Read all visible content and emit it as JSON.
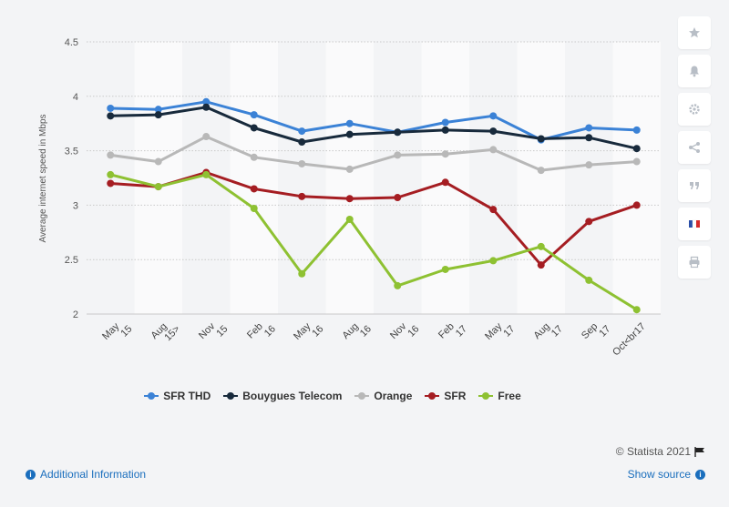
{
  "toolbar": {
    "items": [
      {
        "name": "star-icon"
      },
      {
        "name": "bell-icon"
      },
      {
        "name": "gear-icon"
      },
      {
        "name": "share-icon"
      },
      {
        "name": "quote-icon"
      },
      {
        "name": "flag-icon"
      },
      {
        "name": "print-icon"
      }
    ]
  },
  "footer": {
    "credit": "© Statista 2021",
    "additional_info": "Additional Information",
    "show_source": "Show source"
  },
  "chart_data": {
    "type": "line",
    "title": "",
    "xlabel": "",
    "ylabel": "Average internet speed in Mbps",
    "ylim": [
      2,
      4.5
    ],
    "yticks": [
      "2",
      "2.5",
      "3",
      "3.5",
      "4",
      "4.5"
    ],
    "grid": true,
    "legend_position": "bottom",
    "categories": [
      {
        "line1": "May",
        "line2": "15"
      },
      {
        "line1": "Aug",
        "line2": "15>"
      },
      {
        "line1": "Nov",
        "line2": "15"
      },
      {
        "line1": "Feb",
        "line2": "16"
      },
      {
        "line1": "May",
        "line2": "16"
      },
      {
        "line1": "Aug",
        "line2": "16"
      },
      {
        "line1": "Nov",
        "line2": "16"
      },
      {
        "line1": "Feb",
        "line2": "17"
      },
      {
        "line1": "May",
        "line2": "17"
      },
      {
        "line1": "Aug",
        "line2": "17"
      },
      {
        "line1": "Sep",
        "line2": "17"
      },
      {
        "line1": "Oct<br17",
        "line2": ""
      }
    ],
    "series": [
      {
        "name": "SFR THD",
        "color": "#3b82d6",
        "values": [
          3.89,
          3.88,
          3.95,
          3.83,
          3.68,
          3.75,
          3.67,
          3.76,
          3.82,
          3.6,
          3.71,
          3.69
        ]
      },
      {
        "name": "Bouygues Telecom",
        "color": "#182a3c",
        "values": [
          3.82,
          3.83,
          3.9,
          3.71,
          3.58,
          3.65,
          3.67,
          3.69,
          3.68,
          3.61,
          3.62,
          3.52
        ]
      },
      {
        "name": "Orange",
        "color": "#b8b8b8",
        "values": [
          3.46,
          3.4,
          3.63,
          3.44,
          3.38,
          3.33,
          3.46,
          3.47,
          3.51,
          3.32,
          3.37,
          3.4
        ]
      },
      {
        "name": "SFR",
        "color": "#a51d22",
        "values": [
          3.2,
          3.17,
          3.3,
          3.15,
          3.08,
          3.06,
          3.07,
          3.21,
          2.96,
          2.45,
          2.85,
          3.0
        ]
      },
      {
        "name": "Free",
        "color": "#8ec132",
        "values": [
          3.28,
          3.17,
          3.28,
          2.97,
          2.37,
          2.87,
          2.26,
          2.41,
          2.49,
          2.62,
          2.31,
          2.04
        ]
      }
    ]
  }
}
